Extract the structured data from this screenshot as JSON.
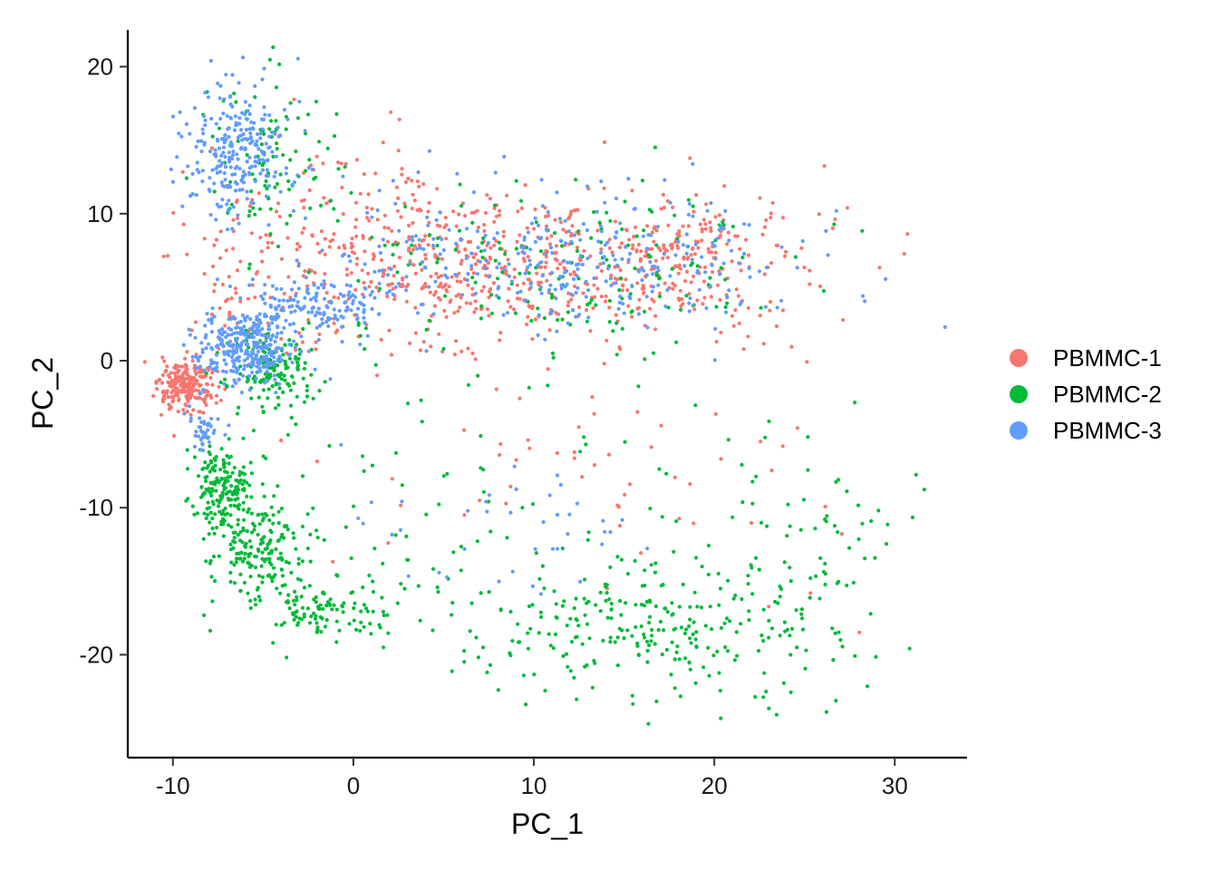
{
  "chart_data": {
    "type": "scatter",
    "title": "",
    "xlabel": "PC_1",
    "ylabel": "PC_2",
    "xlim": [
      -12.5,
      34
    ],
    "ylim": [
      -27,
      22.5
    ],
    "xticks": [
      -10,
      0,
      10,
      20,
      30
    ],
    "yticks": [
      -20,
      -10,
      0,
      10,
      20
    ],
    "xtick_labels": [
      "-10",
      "0",
      "10",
      "20",
      "30"
    ],
    "ytick_labels": [
      "-20",
      "-10",
      "0",
      "10",
      "20"
    ],
    "grid": false,
    "legend_position": "right",
    "series": [
      {
        "name": "PBMMC-1",
        "color": "#F8766D",
        "clusters": [
          {
            "cx": -9.2,
            "cy": -1.8,
            "sx": 0.8,
            "sy": 0.9,
            "n": 220
          },
          {
            "cx": -6.0,
            "cy": 4.5,
            "sx": 2.0,
            "sy": 3.2,
            "n": 90
          },
          {
            "cx": 4.0,
            "cy": 6.5,
            "sx": 4.0,
            "sy": 3.0,
            "n": 280
          },
          {
            "cx": 15.0,
            "cy": 6.5,
            "sx": 5.0,
            "sy": 2.3,
            "n": 380
          },
          {
            "cx": 20.0,
            "cy": 8.5,
            "sx": 2.0,
            "sy": 1.2,
            "n": 40
          },
          {
            "cx": 13.0,
            "cy": -7.0,
            "sx": 7.0,
            "sy": 4.5,
            "n": 55
          },
          {
            "cx": -1.0,
            "cy": 11.0,
            "sx": 3.0,
            "sy": 3.0,
            "n": 50
          }
        ]
      },
      {
        "name": "PBMMC-2",
        "color": "#00BA38",
        "clusters": [
          {
            "cx": -7.3,
            "cy": -8.5,
            "sx": 0.8,
            "sy": 1.5,
            "n": 180
          },
          {
            "cx": -5.2,
            "cy": -13.0,
            "sx": 1.3,
            "sy": 1.8,
            "n": 170
          },
          {
            "cx": -1.5,
            "cy": -17.0,
            "sx": 2.2,
            "sy": 1.2,
            "n": 110
          },
          {
            "cx": -4.5,
            "cy": -0.5,
            "sx": 1.3,
            "sy": 1.5,
            "n": 160
          },
          {
            "cx": 16.5,
            "cy": -18.0,
            "sx": 5.0,
            "sy": 2.5,
            "n": 280
          },
          {
            "cx": 25.0,
            "cy": -12.0,
            "sx": 3.5,
            "sy": 4.0,
            "n": 70
          },
          {
            "cx": 12.0,
            "cy": 6.0,
            "sx": 7.0,
            "sy": 3.0,
            "n": 180
          },
          {
            "cx": -4.5,
            "cy": 14.0,
            "sx": 2.0,
            "sy": 2.5,
            "n": 90
          },
          {
            "cx": 5.0,
            "cy": -10.0,
            "sx": 6.0,
            "sy": 4.5,
            "n": 60
          }
        ]
      },
      {
        "name": "PBMMC-3",
        "color": "#619CFF",
        "clusters": [
          {
            "cx": -6.0,
            "cy": 1.0,
            "sx": 1.4,
            "sy": 1.2,
            "n": 320
          },
          {
            "cx": -2.0,
            "cy": 4.0,
            "sx": 1.8,
            "sy": 1.1,
            "n": 140
          },
          {
            "cx": -6.5,
            "cy": 14.0,
            "sx": 1.5,
            "sy": 2.3,
            "n": 260
          },
          {
            "cx": 14.0,
            "cy": 6.5,
            "sx": 5.5,
            "sy": 2.3,
            "n": 270
          },
          {
            "cx": -8.2,
            "cy": -4.5,
            "sx": 0.5,
            "sy": 0.7,
            "n": 40
          },
          {
            "cx": 8.0,
            "cy": -11.0,
            "sx": 5.0,
            "sy": 2.5,
            "n": 40
          },
          {
            "cx": 4.0,
            "cy": 8.0,
            "sx": 4.0,
            "sy": 3.0,
            "n": 60
          }
        ]
      }
    ]
  }
}
